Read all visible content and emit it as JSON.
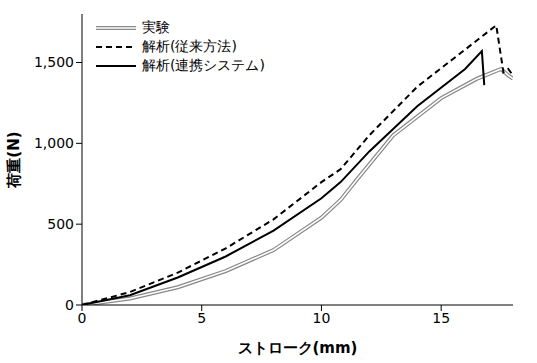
{
  "chart_data": {
    "type": "line",
    "xlabel": "ストローク(mm)",
    "ylabel": "荷重(N)",
    "xlim": [
      0,
      18
    ],
    "xticks": [
      0,
      5,
      10,
      15
    ],
    "ylim": [
      0,
      1800
    ],
    "yticks": [
      0,
      500,
      {
        "value": 1000,
        "label": "1,000"
      },
      {
        "value": 1500,
        "label": "1,500"
      }
    ],
    "grid": false,
    "legend": "upper left",
    "series": [
      {
        "name": "実験",
        "color": "#888888",
        "line_style": "double",
        "marker": "none",
        "x": [
          0,
          2,
          4,
          6,
          8,
          10,
          10.8,
          11.5,
          13,
          15,
          16.5,
          17.5,
          17.8,
          18
        ],
        "values": [
          0,
          40,
          110,
          210,
          340,
          540,
          650,
          780,
          1050,
          1280,
          1400,
          1460,
          1420,
          1400
        ]
      },
      {
        "name": "解析(従来方法)",
        "color": "#000000",
        "line_style": "dashed",
        "marker": "none",
        "x": [
          0,
          2,
          4,
          6,
          8,
          10,
          10.8,
          12,
          14,
          16,
          17.3,
          17.6,
          17.8,
          18
        ],
        "values": [
          0,
          80,
          200,
          350,
          530,
          760,
          840,
          1050,
          1350,
          1580,
          1730,
          1440,
          1460,
          1420
        ]
      },
      {
        "name": "解析(連携システム)",
        "color": "#000000",
        "line_style": "solid",
        "marker": "none",
        "x": [
          0,
          2,
          4,
          6,
          8,
          10,
          10.8,
          12,
          14,
          16,
          16.7,
          16.8
        ],
        "values": [
          0,
          60,
          170,
          300,
          460,
          660,
          760,
          950,
          1230,
          1460,
          1570,
          1360
        ]
      }
    ]
  }
}
